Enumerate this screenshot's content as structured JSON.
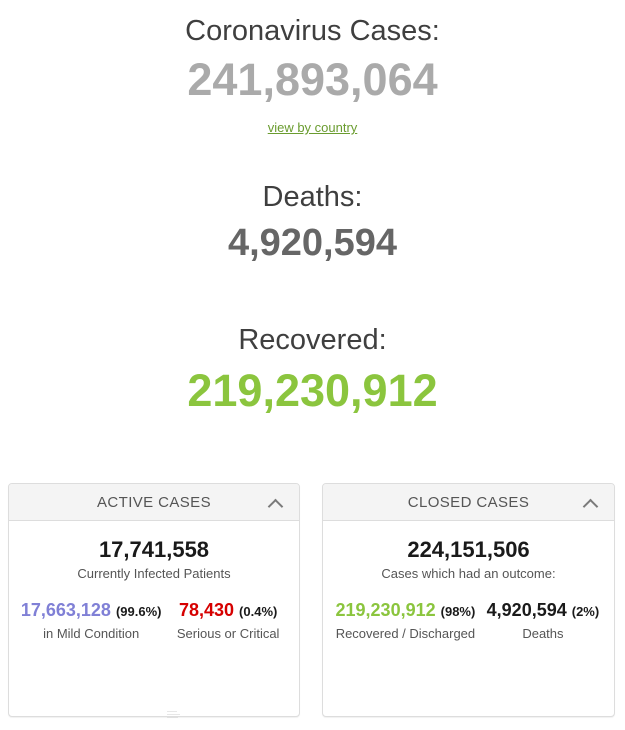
{
  "counters": {
    "cases": {
      "title": "Coronavirus Cases:",
      "value": "241,893,064",
      "link_label": "view by country"
    },
    "deaths": {
      "title": "Deaths:",
      "value": "4,920,594"
    },
    "recovered": {
      "title": "Recovered:",
      "value": "219,230,912"
    }
  },
  "panels": {
    "active": {
      "title": "ACTIVE CASES",
      "collapse_icon": "chevron-up-icon",
      "total": "17,741,558",
      "total_label": "Currently Infected Patients",
      "mild": {
        "value": "17,663,128",
        "pct": "(99.6%)",
        "label": "in Mild Condition"
      },
      "serious": {
        "value": "78,430",
        "pct": "(0.4%)",
        "label": "Serious or Critical"
      }
    },
    "closed": {
      "title": "CLOSED CASES",
      "collapse_icon": "chevron-up-icon",
      "total": "224,151,506",
      "total_label": "Cases which had an outcome:",
      "recovered": {
        "value": "219,230,912",
        "pct": "(98%)",
        "label": "Recovered / Discharged"
      },
      "deaths": {
        "value": "4,920,594",
        "pct": "(2%)",
        "label": "Deaths"
      }
    }
  },
  "colors": {
    "cases_number": "#aaaaaa",
    "deaths_number": "#666666",
    "recovered_green": "#8bc53e",
    "link_green": "#6a9c2f",
    "mild_purple": "#8080d6",
    "serious_red": "#d60000",
    "panel_header_bg": "#f4f4f4",
    "panel_border": "#dddddd",
    "heading_gray": "#3f3f3f"
  }
}
